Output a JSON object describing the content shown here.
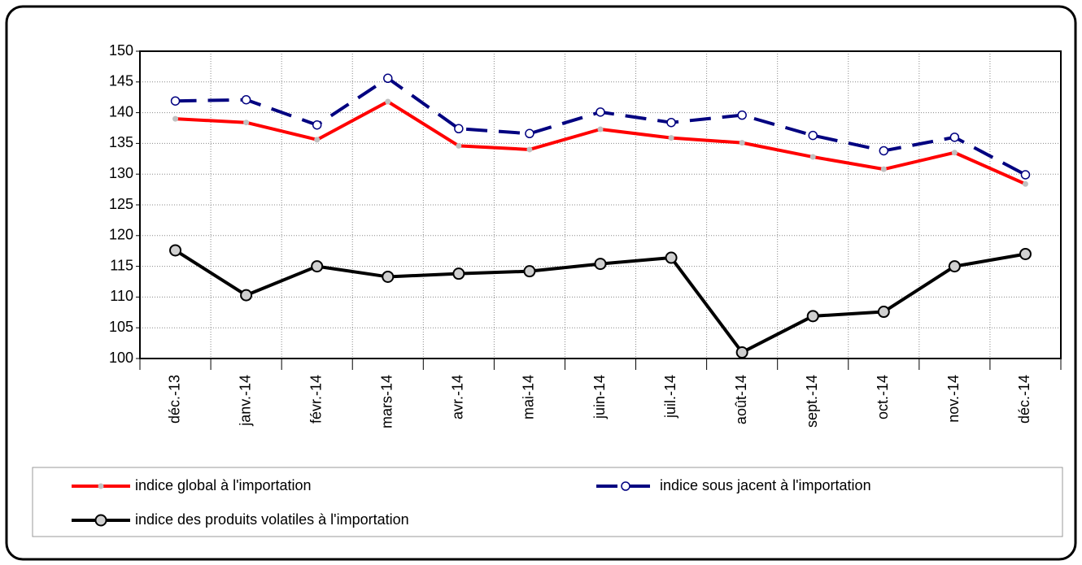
{
  "chart_data": {
    "type": "line",
    "categories": [
      "déc.-13",
      "janv.-14",
      "févr.-14",
      "mars-14",
      "avr.-14",
      "mai-14",
      "juin-14",
      "juil.-14",
      "août-14",
      "sept.-14",
      "oct.-14",
      "nov.-14",
      "déc.-14"
    ],
    "series": [
      {
        "name": "indice global à l'importation",
        "color": "#ff0000",
        "marker_color": "#c0c0c0",
        "dashed": false,
        "values": [
          139,
          138.4,
          135.6,
          141.8,
          134.6,
          134,
          137.3,
          135.9,
          135.1,
          132.8,
          130.8,
          133.5,
          128.4
        ]
      },
      {
        "name": "indice sous jacent à l'importation",
        "color": "#000080",
        "marker_color": "#ffffff",
        "dashed": true,
        "values": [
          141.9,
          142.1,
          138,
          145.6,
          137.4,
          136.6,
          140.1,
          138.4,
          139.6,
          136.3,
          133.8,
          136,
          129.9
        ]
      },
      {
        "name": "indice des produits volatiles à l'importation",
        "color": "#000000",
        "marker_color": "#d0d0d0",
        "dashed": false,
        "values": [
          117.6,
          110.3,
          115,
          113.3,
          113.8,
          114.2,
          115.4,
          116.4,
          101,
          106.9,
          107.6,
          115,
          117
        ]
      }
    ],
    "ylim": [
      100,
      150
    ],
    "yticks": [
      100,
      105,
      110,
      115,
      120,
      125,
      130,
      135,
      140,
      145,
      150
    ],
    "grid": true,
    "legend": "bottom"
  }
}
